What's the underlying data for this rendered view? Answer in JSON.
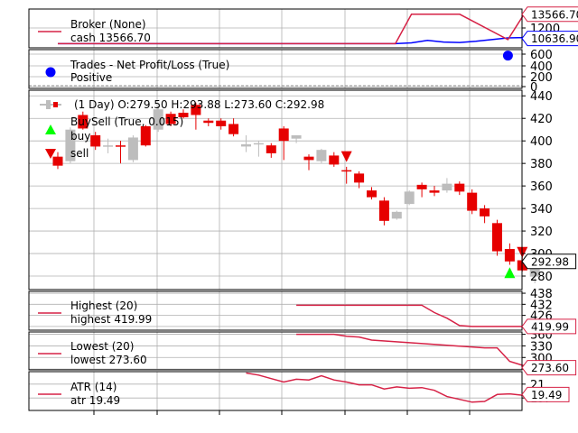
{
  "chart_data": [
    {
      "type": "line",
      "panel": "broker",
      "series": [
        {
          "name": "cash",
          "color": "#d62246"
        },
        {
          "name": "value",
          "color": "#0000ff"
        }
      ],
      "legend_title": "Broker (None)",
      "legend_entry": "cash 13566.70",
      "yticks": [
        "1200"
      ],
      "last_value_flags": [
        "13566.70",
        "10636.90"
      ],
      "cash_x": [
        1,
        43,
        45,
        51,
        57,
        59,
        60
      ],
      "cash_y": [
        10000,
        10000,
        13566.7,
        13566.7,
        10500,
        13566.7,
        13566.7
      ],
      "value_x": [
        1,
        43,
        45,
        47,
        49,
        51,
        53,
        55,
        57,
        59,
        60
      ],
      "value_y": [
        10000,
        10000,
        10100,
        10400,
        10200,
        10150,
        10300,
        10500,
        10700,
        10750,
        10636.9
      ],
      "ylim": [
        9500,
        14200
      ]
    },
    {
      "type": "scatter",
      "panel": "trades",
      "legend_title": "Trades - Net Profit/Loss (True)",
      "legend_entry": "Positive",
      "marker_color": "#0000ff",
      "yticks": [
        "600",
        "400",
        "200",
        "0"
      ],
      "points": [
        {
          "x": 57,
          "y": 550
        }
      ],
      "ylim": [
        0,
        650
      ]
    },
    {
      "type": "candlestick",
      "panel": "price",
      "legend_title": "(1 Day) O:279.50 H:293.88 L:273.60 C:292.98",
      "legend_entry_1": "BuySell (True, 0.015)",
      "legend_entry_2": "buy",
      "legend_entry_3": "sell",
      "up_color": "#bdbdbd",
      "down_color": "#e60000",
      "buy_color": "#00ff00",
      "sell_color": "#e60000",
      "yticks": [
        "440",
        "420",
        "400",
        "380",
        "360",
        "340",
        "320",
        "300",
        "280"
      ],
      "last_value_flag": "292.98",
      "ylim": [
        268,
        445
      ],
      "candles": [
        {
          "x": 1,
          "o": 386,
          "h": 390,
          "l": 375,
          "c": 378
        },
        {
          "x": 2,
          "o": 382,
          "h": 412,
          "l": 380,
          "c": 410
        },
        {
          "x": 3,
          "o": 423,
          "h": 426,
          "l": 410,
          "c": 411
        },
        {
          "x": 4,
          "o": 405,
          "h": 408,
          "l": 392,
          "c": 395
        },
        {
          "x": 5,
          "o": 395,
          "h": 402,
          "l": 389,
          "c": 396
        },
        {
          "x": 6,
          "o": 396,
          "h": 400,
          "l": 380,
          "c": 395
        },
        {
          "x": 7,
          "o": 383,
          "h": 405,
          "l": 381,
          "c": 403
        },
        {
          "x": 8,
          "o": 413,
          "h": 414,
          "l": 395,
          "c": 396
        },
        {
          "x": 9,
          "o": 410,
          "h": 430,
          "l": 408,
          "c": 428
        },
        {
          "x": 10,
          "o": 424,
          "h": 426,
          "l": 413,
          "c": 415
        },
        {
          "x": 11,
          "o": 425,
          "h": 428,
          "l": 420,
          "c": 421
        },
        {
          "x": 12,
          "o": 432,
          "h": 434,
          "l": 410,
          "c": 423
        },
        {
          "x": 13,
          "o": 418,
          "h": 420,
          "l": 413,
          "c": 416
        },
        {
          "x": 14,
          "o": 418,
          "h": 420,
          "l": 410,
          "c": 413
        },
        {
          "x": 15,
          "o": 415,
          "h": 420,
          "l": 404,
          "c": 406
        },
        {
          "x": 16,
          "o": 395,
          "h": 405,
          "l": 390,
          "c": 397
        },
        {
          "x": 17,
          "o": 397,
          "h": 400,
          "l": 386,
          "c": 398
        },
        {
          "x": 18,
          "o": 396,
          "h": 398,
          "l": 385,
          "c": 389
        },
        {
          "x": 19,
          "o": 411,
          "h": 413,
          "l": 383,
          "c": 400
        },
        {
          "x": 20,
          "o": 402,
          "h": 405,
          "l": 398,
          "c": 405
        },
        {
          "x": 21,
          "o": 386,
          "h": 388,
          "l": 374,
          "c": 383
        },
        {
          "x": 22,
          "o": 382,
          "h": 393,
          "l": 380,
          "c": 392
        },
        {
          "x": 23,
          "o": 387,
          "h": 390,
          "l": 377,
          "c": 379
        },
        {
          "x": 24,
          "o": 374,
          "h": 377,
          "l": 362,
          "c": 373
        },
        {
          "x": 25,
          "o": 371,
          "h": 373,
          "l": 358,
          "c": 363
        },
        {
          "x": 26,
          "o": 356,
          "h": 359,
          "l": 348,
          "c": 350
        },
        {
          "x": 27,
          "o": 347,
          "h": 350,
          "l": 325,
          "c": 329
        },
        {
          "x": 28,
          "o": 331,
          "h": 338,
          "l": 330,
          "c": 337
        },
        {
          "x": 29,
          "o": 344,
          "h": 356,
          "l": 343,
          "c": 355
        },
        {
          "x": 30,
          "o": 361,
          "h": 363,
          "l": 350,
          "c": 357
        },
        {
          "x": 31,
          "o": 356,
          "h": 360,
          "l": 351,
          "c": 354
        },
        {
          "x": 32,
          "o": 356,
          "h": 367,
          "l": 354,
          "c": 362
        },
        {
          "x": 33,
          "o": 362,
          "h": 364,
          "l": 352,
          "c": 355
        },
        {
          "x": 34,
          "o": 354,
          "h": 357,
          "l": 335,
          "c": 338
        },
        {
          "x": 35,
          "o": 340,
          "h": 343,
          "l": 327,
          "c": 333
        },
        {
          "x": 36,
          "o": 327,
          "h": 330,
          "l": 298,
          "c": 302
        },
        {
          "x": 37,
          "o": 304,
          "h": 309,
          "l": 290,
          "c": 293
        },
        {
          "x": 38,
          "o": 294,
          "h": 298,
          "l": 284,
          "c": 285
        },
        {
          "x": 39,
          "o": 279.5,
          "h": 293.88,
          "l": 273.6,
          "c": 292.98
        }
      ],
      "buys": [
        {
          "x": 37,
          "y": 283
        }
      ],
      "sells": [
        {
          "x": 24,
          "y": 386
        },
        {
          "x": 38,
          "y": 301
        }
      ]
    },
    {
      "type": "line",
      "panel": "highest",
      "legend_title": "Highest (20)",
      "legend_entry": "highest 419.99",
      "color": "#d62246",
      "yticks": [
        "438",
        "432",
        "426",
        "420"
      ],
      "last_value_flag": "419.99",
      "ylim": [
        418,
        439
      ],
      "x": [
        20,
        30,
        31,
        32,
        33,
        34,
        39
      ],
      "y": [
        431.5,
        431.5,
        427.5,
        424.5,
        420.5,
        420,
        420
      ]
    },
    {
      "type": "line",
      "panel": "lowest",
      "legend_title": "Lowest (20)",
      "legend_entry": "lowest 273.60",
      "color": "#d62246",
      "yticks": [
        "360",
        "330",
        "300",
        "270"
      ],
      "last_value_flag": "273.60",
      "ylim": [
        268,
        366
      ],
      "x": [
        20,
        23,
        24,
        25,
        26,
        35,
        36,
        37,
        38,
        39
      ],
      "y": [
        360,
        360,
        355,
        353,
        345,
        325,
        325,
        290,
        280,
        273.6
      ]
    },
    {
      "type": "line",
      "panel": "atr",
      "legend_title": "ATR (14)",
      "legend_entry": "atr 19.49",
      "color": "#d62246",
      "yticks": [
        "21.",
        "19."
      ],
      "last_value_flag": "19.49",
      "ylim": [
        17.2,
        22.8
      ],
      "x": [
        16,
        17,
        18,
        19,
        20,
        21,
        22,
        23,
        24,
        25,
        26,
        27,
        28,
        29,
        30,
        31,
        32,
        33,
        34,
        35,
        36,
        37,
        38,
        39
      ],
      "y": [
        22.6,
        22.3,
        21.8,
        21.3,
        21.7,
        21.6,
        22.2,
        21.6,
        21.3,
        20.9,
        20.9,
        20.3,
        20.6,
        20.4,
        20.5,
        20.1,
        19.2,
        18.8,
        18.4,
        18.5,
        19.5,
        19.6,
        19.4,
        19.5
      ]
    }
  ]
}
